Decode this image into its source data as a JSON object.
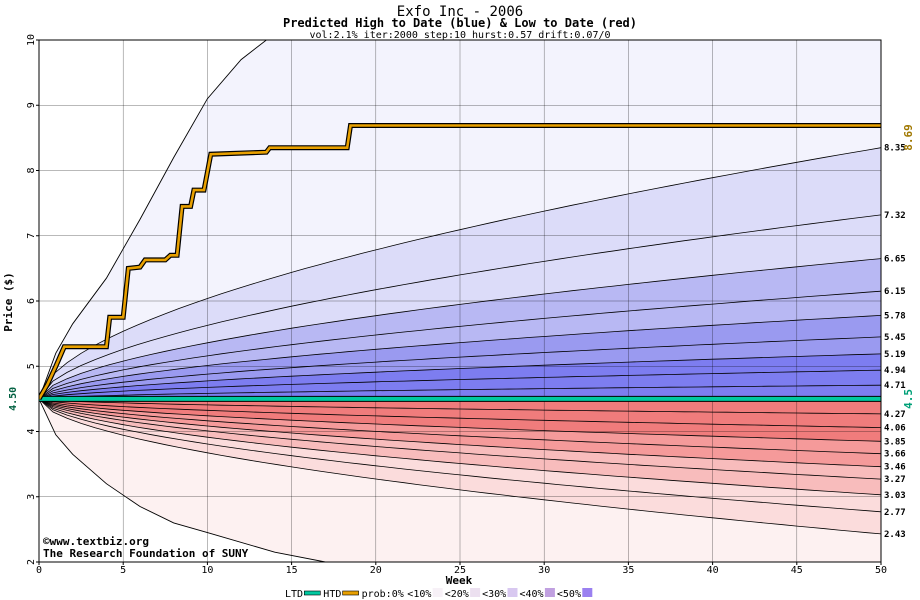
{
  "chart_data": {
    "type": "area",
    "title": "Exfo Inc - 2006",
    "subtitle": "Predicted High to Date (blue) &  Low to Date (red)",
    "params": "vol:2.1% iter:2000 step:10 hurst:0.57 drift:0.07/0",
    "xlabel": "Week",
    "ylabel": "Price ($)",
    "xlim": [
      0,
      50
    ],
    "ylim": [
      2,
      10
    ],
    "x_ticks": [
      0,
      5,
      10,
      15,
      20,
      25,
      30,
      35,
      40,
      45,
      50
    ],
    "y_ticks": [
      2,
      3,
      4,
      5,
      6,
      7,
      8,
      9,
      10
    ],
    "grid": true,
    "start_price": 4.5,
    "start_label": "4.50",
    "htd_final_label": "8.69",
    "ltd_final_label": "4.5",
    "colors": {
      "blue_bands": [
        "#f3f3fd",
        "#dcdcf9",
        "#b8b8f3",
        "#9a9af0",
        "#7d7df0"
      ],
      "red_bands": [
        "#fdf1f1",
        "#fbdcdc",
        "#f8bcbc",
        "#f59a9a",
        "#f07c7c"
      ],
      "htd_line": "#e8a000",
      "ltd_line": "#00c8a0",
      "htd_label": "#a07800",
      "ltd_label": "#00a078"
    },
    "upper_quantiles": [
      {
        "final": 4.71,
        "label": "4.71"
      },
      {
        "final": 4.94,
        "label": "4.94"
      },
      {
        "final": 5.19,
        "label": "5.19"
      },
      {
        "final": 5.45,
        "label": "5.45"
      },
      {
        "final": 5.78,
        "label": "5.78"
      },
      {
        "final": 6.15,
        "label": "6.15"
      },
      {
        "final": 6.65,
        "label": "6.65"
      },
      {
        "final": 7.32,
        "label": "7.32"
      },
      {
        "final": 8.35,
        "label": "8.35"
      }
    ],
    "lower_quantiles": [
      {
        "final": 4.27,
        "label": "4.27"
      },
      {
        "final": 4.06,
        "label": "4.06"
      },
      {
        "final": 3.85,
        "label": "3.85"
      },
      {
        "final": 3.66,
        "label": "3.66"
      },
      {
        "final": 3.46,
        "label": "3.46"
      },
      {
        "final": 3.27,
        "label": "3.27"
      },
      {
        "final": 3.03,
        "label": "3.03"
      },
      {
        "final": 2.77,
        "label": "2.77"
      },
      {
        "final": 2.43,
        "label": "2.43"
      }
    ],
    "outer_upper_curve": [
      [
        0,
        4.5
      ],
      [
        1,
        5.2
      ],
      [
        2,
        5.65
      ],
      [
        4,
        6.35
      ],
      [
        6,
        7.25
      ],
      [
        8,
        8.2
      ],
      [
        10,
        9.1
      ],
      [
        12,
        9.7
      ],
      [
        14,
        10.1
      ]
    ],
    "outer_lower_curve": [
      [
        0,
        4.5
      ],
      [
        1,
        3.95
      ],
      [
        2,
        3.65
      ],
      [
        4,
        3.2
      ],
      [
        6,
        2.85
      ],
      [
        8,
        2.6
      ],
      [
        10,
        2.45
      ],
      [
        14,
        2.15
      ],
      [
        17,
        2.0
      ]
    ],
    "htd_path": [
      [
        0,
        4.5
      ],
      [
        0.5,
        4.72
      ],
      [
        1,
        5.0
      ],
      [
        1.5,
        5.3
      ],
      [
        4,
        5.3
      ],
      [
        4.2,
        5.75
      ],
      [
        5,
        5.75
      ],
      [
        5.3,
        6.5
      ],
      [
        6,
        6.52
      ],
      [
        6.3,
        6.63
      ],
      [
        7.5,
        6.63
      ],
      [
        7.8,
        6.7
      ],
      [
        8.2,
        6.7
      ],
      [
        8.5,
        7.45
      ],
      [
        9,
        7.45
      ],
      [
        9.2,
        7.7
      ],
      [
        9.8,
        7.7
      ],
      [
        10.2,
        8.25
      ],
      [
        13.5,
        8.28
      ],
      [
        13.7,
        8.35
      ],
      [
        18.3,
        8.35
      ],
      [
        18.5,
        8.69
      ],
      [
        50.5,
        8.69
      ]
    ],
    "ltd_path": [
      [
        0,
        4.5
      ],
      [
        50.5,
        4.5
      ]
    ],
    "watermark": [
      "©www.textbiz.org",
      "The Research Foundation of SUNY"
    ],
    "legend": {
      "items": [
        {
          "label": "LTD",
          "swatch": "line",
          "color": "#00c8a0"
        },
        {
          "label": "HTD",
          "swatch": "line",
          "color": "#e8a000"
        },
        {
          "label": "prob:0%",
          "swatch": "none"
        },
        {
          "label": "<10%",
          "swatch": "box",
          "color": "#f7f1f7"
        },
        {
          "label": "<20%",
          "swatch": "box",
          "color": "#ece0f0"
        },
        {
          "label": "<30%",
          "swatch": "box",
          "color": "#d8c8f0"
        },
        {
          "label": "<40%",
          "swatch": "box",
          "color": "#c0a0e0"
        },
        {
          "label": "<50%",
          "swatch": "box",
          "color": "#9a80f0"
        }
      ]
    }
  }
}
